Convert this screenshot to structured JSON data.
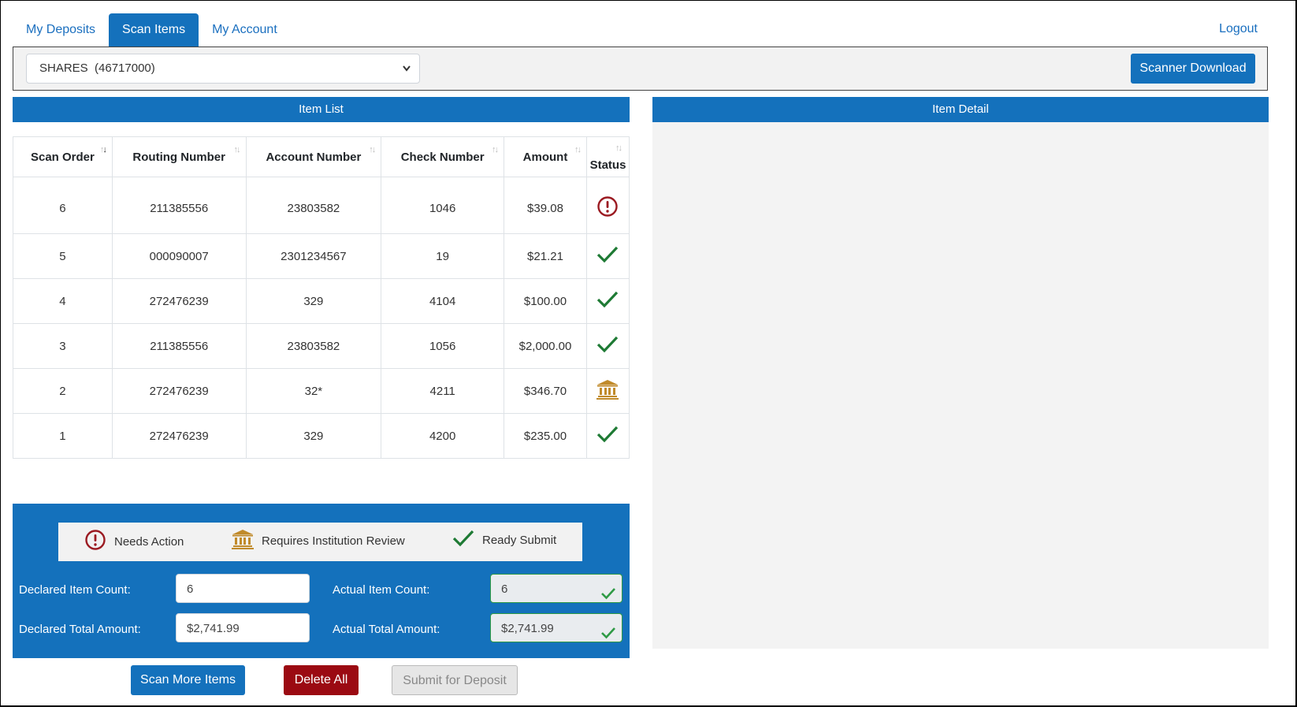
{
  "tabs": [
    {
      "label": "My Deposits",
      "active": false
    },
    {
      "label": "Scan Items",
      "active": true
    },
    {
      "label": "My Account",
      "active": false
    }
  ],
  "logout_label": "Logout",
  "account_select": {
    "value": "SHARES  (46717000)"
  },
  "scanner_download_label": "Scanner Download",
  "item_list_title": "Item List",
  "item_detail_title": "Item Detail",
  "columns": [
    "Scan Order",
    "Routing Number",
    "Account Number",
    "Check Number",
    "Amount",
    "Status"
  ],
  "rows": [
    {
      "scan_order": "6",
      "routing": "211385556",
      "account": "23803582",
      "check": "1046",
      "amount": "$39.08",
      "status": "needs-action"
    },
    {
      "scan_order": "5",
      "routing": "000090007",
      "account": "2301234567",
      "check": "19",
      "amount": "$21.21",
      "status": "ready"
    },
    {
      "scan_order": "4",
      "routing": "272476239",
      "account": "329",
      "check": "4104",
      "amount": "$100.00",
      "status": "ready"
    },
    {
      "scan_order": "3",
      "routing": "211385556",
      "account": "23803582",
      "check": "1056",
      "amount": "$2,000.00",
      "status": "ready"
    },
    {
      "scan_order": "2",
      "routing": "272476239",
      "account": "32*",
      "check": "4211",
      "amount": "$346.70",
      "status": "review"
    },
    {
      "scan_order": "1",
      "routing": "272476239",
      "account": "329",
      "check": "4200",
      "amount": "$235.00",
      "status": "ready"
    }
  ],
  "legend": {
    "needs_action": "Needs Action",
    "review": "Requires Institution Review",
    "ready": "Ready Submit"
  },
  "totals": {
    "declared_count_label": "Declared Item Count:",
    "declared_count_value": "6",
    "actual_count_label": "Actual Item Count:",
    "actual_count_value": "6",
    "declared_amount_label": "Declared Total Amount:",
    "declared_amount_value": "$2,741.99",
    "actual_amount_label": "Actual Total Amount:",
    "actual_amount_value": "$2,741.99"
  },
  "buttons": {
    "scan_more": "Scan More Items",
    "delete_all": "Delete All",
    "submit": "Submit for Deposit"
  },
  "colors": {
    "primary": "#1471bc",
    "danger": "#9b0a12",
    "success": "#1e7a34",
    "review": "#c08a2a"
  }
}
